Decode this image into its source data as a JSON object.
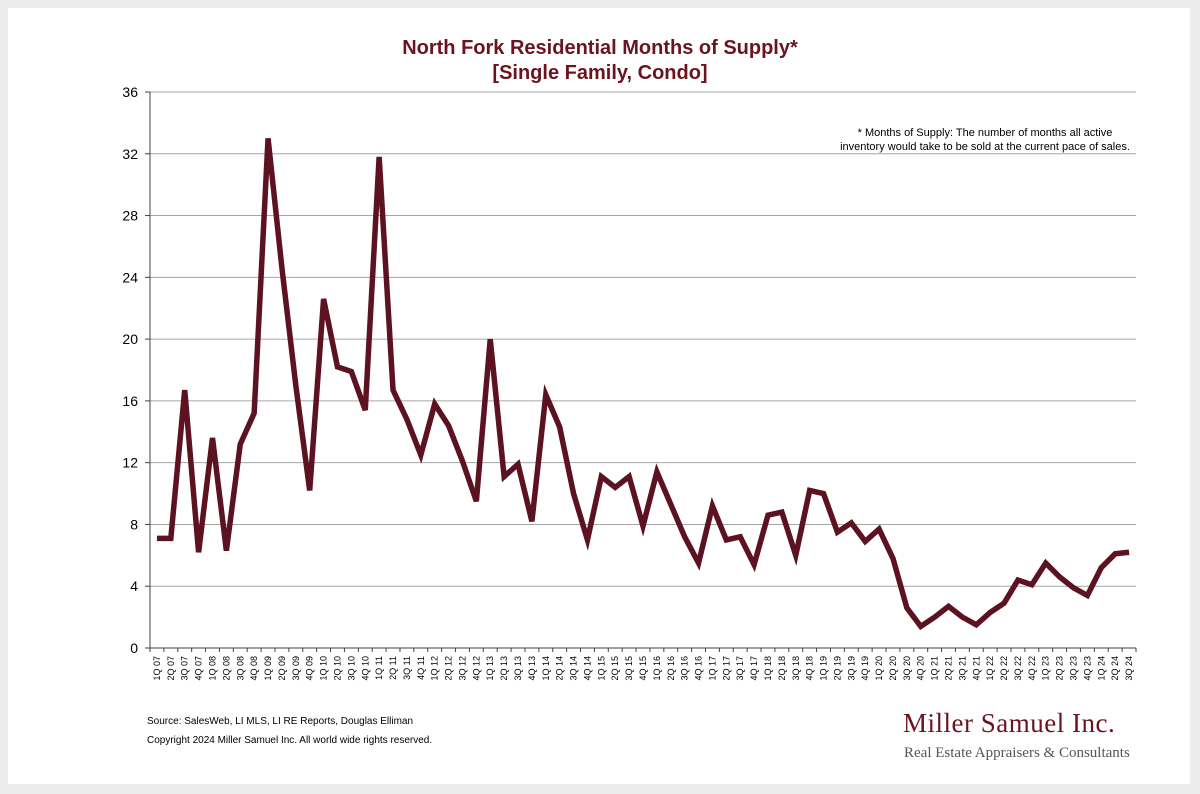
{
  "chart_data": {
    "type": "line",
    "title": "North Fork Residential Months of Supply*",
    "subtitle": "[Single Family, Condo]",
    "footnote": [
      "* Months of Supply: The number of months all active",
      "inventory would take to be sold at the current pace of sales."
    ],
    "xlabel": "",
    "ylabel": "",
    "ylim": [
      0,
      36
    ],
    "yticks": [
      0,
      4,
      8,
      12,
      16,
      20,
      24,
      28,
      32,
      36
    ],
    "grid": true,
    "line_color": "#5c1220",
    "categories": [
      "1Q 07",
      "2Q 07",
      "3Q 07",
      "4Q 07",
      "1Q 08",
      "2Q 08",
      "3Q 08",
      "4Q 08",
      "1Q 09",
      "2Q 09",
      "3Q 09",
      "4Q 09",
      "1Q 10",
      "2Q 10",
      "3Q 10",
      "4Q 10",
      "1Q 11",
      "2Q 11",
      "3Q 11",
      "4Q 11",
      "1Q 12",
      "2Q 12",
      "3Q 12",
      "4Q 12",
      "1Q 13",
      "2Q 13",
      "3Q 13",
      "4Q 13",
      "1Q 14",
      "2Q 14",
      "3Q 14",
      "4Q 14",
      "1Q 15",
      "2Q 15",
      "3Q 15",
      "4Q 15",
      "1Q 16",
      "2Q 16",
      "3Q 16",
      "4Q 16",
      "1Q 17",
      "2Q 17",
      "3Q 17",
      "4Q 17",
      "1Q 18",
      "2Q 18",
      "3Q 18",
      "4Q 18",
      "1Q 19",
      "2Q 19",
      "3Q 19",
      "4Q 19",
      "1Q 20",
      "2Q 20",
      "3Q 20",
      "4Q 20",
      "1Q 21",
      "2Q 21",
      "3Q 21",
      "4Q 21",
      "1Q 22",
      "2Q 22",
      "3Q 22",
      "4Q 22",
      "1Q 23",
      "2Q 23",
      "3Q 23",
      "4Q 23",
      "1Q 24",
      "2Q 24",
      "3Q 24"
    ],
    "series": [
      {
        "name": "Months of Supply",
        "values": [
          7.1,
          7.1,
          16.7,
          6.2,
          13.6,
          6.3,
          13.2,
          15.2,
          33.0,
          24.6,
          17.0,
          10.2,
          22.6,
          18.2,
          17.9,
          15.4,
          31.8,
          16.7,
          14.8,
          12.5,
          15.8,
          14.4,
          12.1,
          9.5,
          20.0,
          11.1,
          11.9,
          8.2,
          16.4,
          14.3,
          10.0,
          7.0,
          11.1,
          10.4,
          11.1,
          7.9,
          11.4,
          9.3,
          7.2,
          5.5,
          9.2,
          7.0,
          7.2,
          5.4,
          8.6,
          8.8,
          6.0,
          10.2,
          10.0,
          7.5,
          8.1,
          6.9,
          7.7,
          5.8,
          2.6,
          1.4,
          2.0,
          2.7,
          2.0,
          1.5,
          2.3,
          2.9,
          4.4,
          4.1,
          5.5,
          4.6,
          3.9,
          3.4,
          5.2,
          6.1,
          6.2
        ]
      }
    ]
  },
  "footer": {
    "source": "Source: SalesWeb, LI MLS, LI RE Reports, Douglas Elliman",
    "copyright": "Copyright 2024 Miller Samuel Inc.  All world wide rights reserved.",
    "logo_name": "Miller Samuel Inc.",
    "logo_tagline": "Real Estate Appraisers & Consultants"
  }
}
